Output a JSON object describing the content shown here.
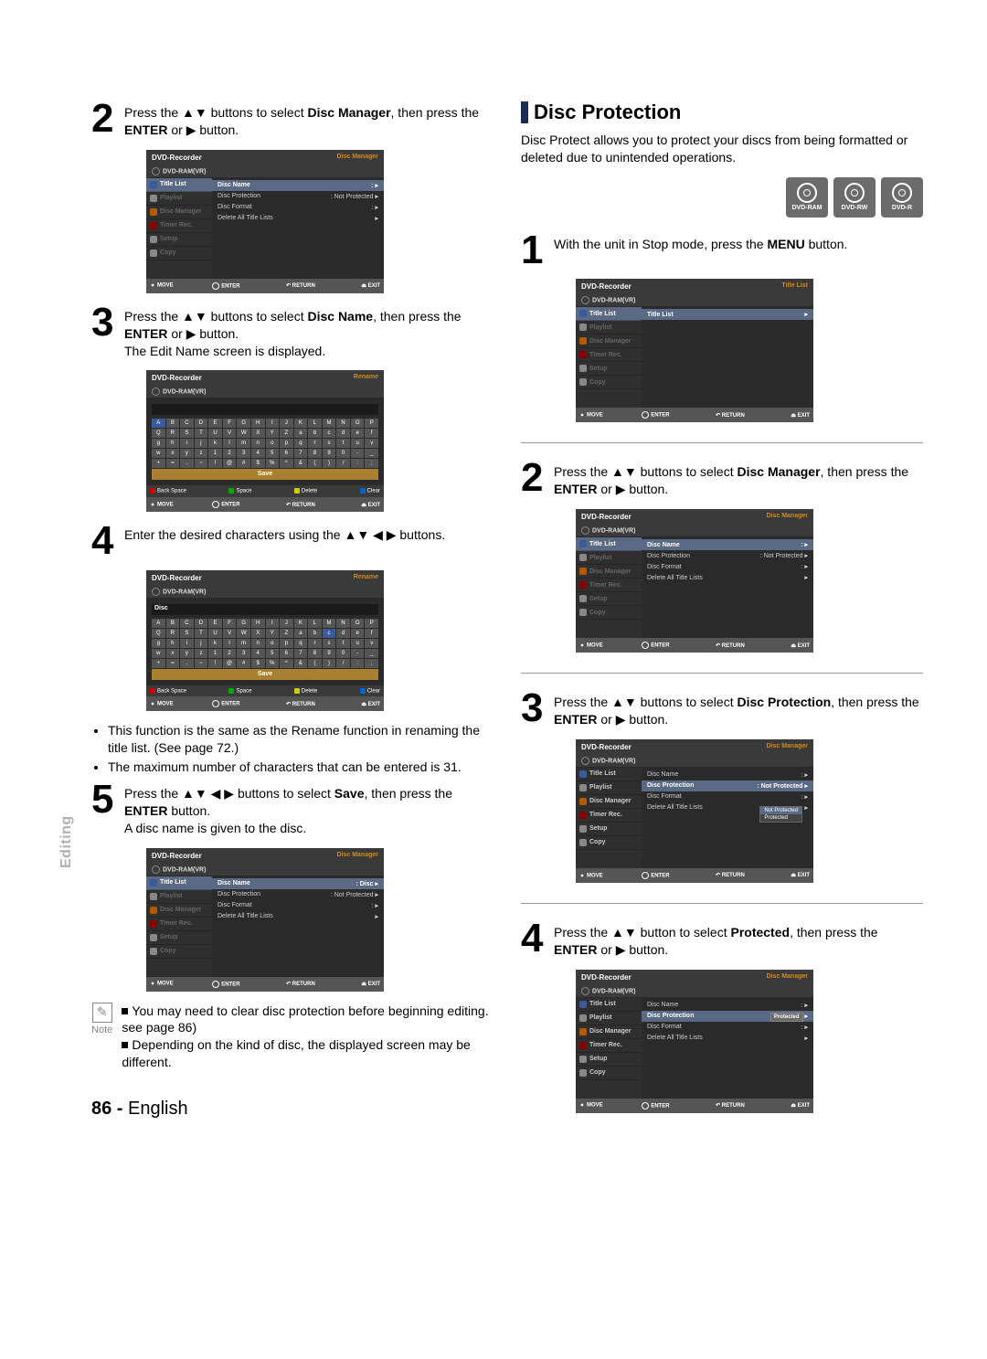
{
  "tri_ud": "▲▼",
  "tri_all": "▲▼ ◀ ▶",
  "play": "▶",
  "footer": {
    "pagenum": "86 -",
    "lang": "English"
  },
  "sidebar_label": "Editing",
  "left": {
    "s2": {
      "t1": "Press the ",
      "t2": " buttons to select ",
      "b2": "Disc Manager",
      "t3": ", then press the ",
      "b3": "ENTER",
      "t4": " or ",
      "t5": " button."
    },
    "s3": {
      "t1": "Press the ",
      "t2": " buttons to select ",
      "b2": "Disc Name",
      "t3": ", then press the ",
      "b3": "ENTER",
      "t4": " or ",
      "t5": " button.",
      "line2": "The Edit Name screen is displayed."
    },
    "s4": {
      "t1": "Enter the desired characters using the ",
      "t2": " buttons."
    },
    "bullets": [
      "This function is the same as the Rename function in renaming the title list. (See page 72.)",
      "The maximum number of characters that can be entered is 31."
    ],
    "s5": {
      "t1": "Press the ",
      "t2": " buttons to select ",
      "b2": "Save",
      "t3": ", then press the ",
      "b3": "ENTER",
      "t4": " button.",
      "line2": "A disc name is given to the disc."
    },
    "note": {
      "label": "Note",
      "n1": "You may need to clear disc protection before beginning editing. see page 86)",
      "n2": "Depending on the kind of disc, the displayed screen may be different."
    }
  },
  "right": {
    "head": "Disc Protection",
    "intro": "Disc Protect allows you to protect your discs from being formatted or deleted due to unintended operations.",
    "badges": [
      "DVD-RAM",
      "DVD-RW",
      "DVD-R"
    ],
    "s1": {
      "t1": "With the unit in Stop mode, press the ",
      "b1": "MENU",
      "t2": " button."
    },
    "s2": {
      "t1": "Press the ",
      "t2": " buttons to select ",
      "b2": "Disc Manager",
      "t3": ", then press the ",
      "b3": "ENTER",
      "t4": " or ",
      "t5": " button."
    },
    "s3": {
      "t1": "Press the ",
      "t2": " buttons to select ",
      "b2": "Disc Protection",
      "t3": ", then press the ",
      "b3": "ENTER",
      "t4": " or ",
      "t5": " button."
    },
    "s4": {
      "t1": "Press the ",
      "t2": " button to select ",
      "b2": "Protected",
      "t3": ", then press the ",
      "b3": "ENTER",
      "t4": " or ",
      "t5": " button."
    }
  },
  "ui": {
    "rec": "DVD-Recorder",
    "mode": "DVD-RAM(VR)",
    "side": [
      "Title List",
      "Playlist",
      "Disc Manager",
      "Timer Rec.",
      "Setup",
      "Copy"
    ],
    "dm_head": "Disc Manager",
    "rename_head": "Rename",
    "tl_head": "Title List",
    "rows": {
      "name": "Disc Name",
      "prot": "Disc Protection",
      "protv": "Not Protected",
      "protv2": "Protected",
      "fmt": "Disc Format",
      "del": "Delete All Title Lists",
      "namev": "Disc"
    },
    "foot": {
      "move": "MOVE",
      "enter": "ENTER",
      "return": "RETURN",
      "exit": "EXIT"
    },
    "legend": {
      "back": "Back Space",
      "space": "Space",
      "del": "Delete",
      "clear": "Clear"
    },
    "save": "Save",
    "field_typed": "Disc",
    "kb_rows": [
      [
        "A",
        "B",
        "C",
        "D",
        "E",
        "F",
        "G",
        "H",
        "I",
        "J",
        "K",
        "L",
        "M",
        "N",
        "O",
        "P"
      ],
      [
        "Q",
        "R",
        "S",
        "T",
        "U",
        "V",
        "W",
        "X",
        "Y",
        "Z",
        "a",
        "b",
        "c",
        "d",
        "e",
        "f"
      ],
      [
        "g",
        "h",
        "i",
        "j",
        "k",
        "l",
        "m",
        "n",
        "o",
        "p",
        "q",
        "r",
        "s",
        "t",
        "u",
        "v"
      ],
      [
        "w",
        "x",
        "y",
        "z",
        "1",
        "2",
        "3",
        "4",
        "5",
        "6",
        "7",
        "8",
        "9",
        "0",
        "-",
        "_"
      ],
      [
        "+",
        "=",
        ".",
        "~",
        "!",
        "@",
        "#",
        "$",
        "%",
        "^",
        "&",
        "(",
        ")",
        "/",
        ":",
        ";"
      ]
    ]
  }
}
